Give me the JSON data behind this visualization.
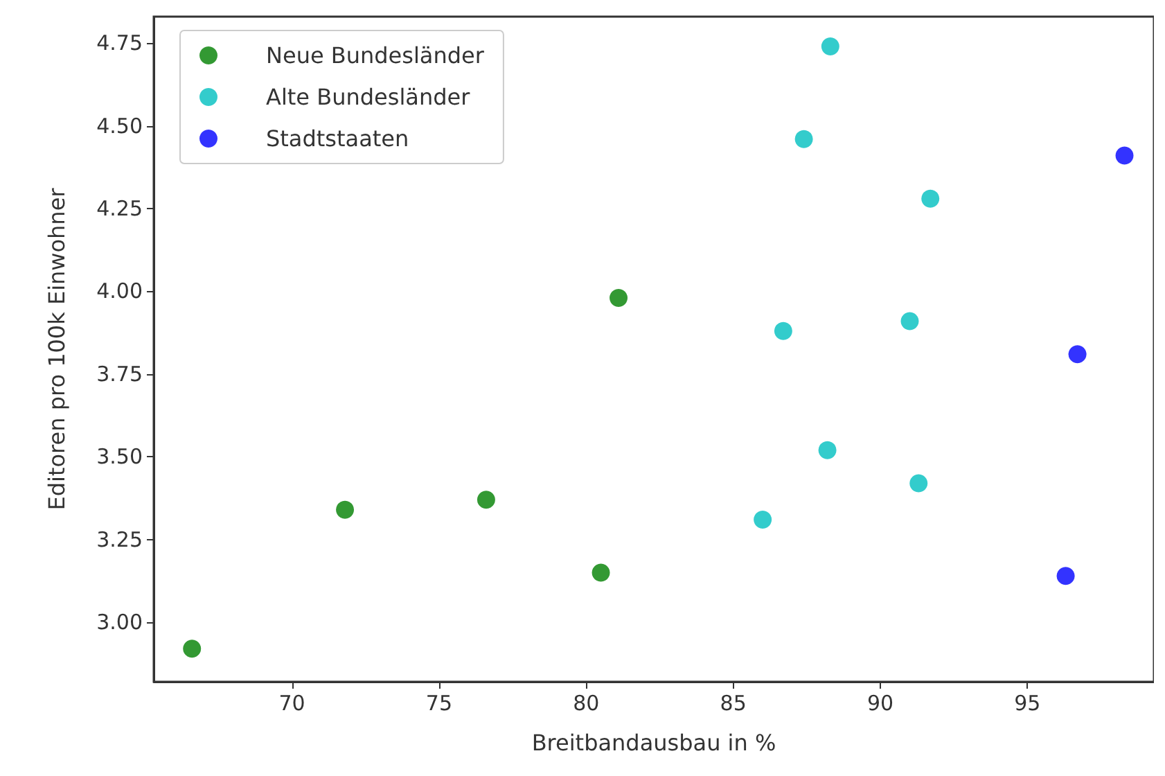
{
  "chart_data": {
    "type": "scatter",
    "xlabel": "Breitbandausbau in %",
    "ylabel": "Editoren pro 100k Einwohner",
    "xlim": [
      65.3,
      99.3
    ],
    "xticks": [
      70,
      75,
      80,
      85,
      90,
      95
    ],
    "ylim": [
      2.82,
      4.83
    ],
    "yticks": [
      {
        "value": 3,
        "label": "3.00"
      },
      {
        "value": 3.25,
        "label": "3.25"
      },
      {
        "value": 3.5,
        "label": "3.50"
      },
      {
        "value": 3.75,
        "label": "3.75"
      },
      {
        "value": 4,
        "label": "4.00"
      },
      {
        "value": 4.25,
        "label": "4.25"
      },
      {
        "value": 4.5,
        "label": "4.50"
      },
      {
        "value": 4.75,
        "label": "4.75"
      }
    ],
    "grid": false,
    "legend": "top left",
    "marker": "circle",
    "series": [
      {
        "name": "Neue Bundesländer",
        "color": "#008000",
        "x": [
          66.6,
          71.8,
          76.6,
          80.5,
          81.1
        ],
        "values": [
          2.92,
          3.34,
          3.37,
          3.15,
          3.98
        ]
      },
      {
        "name": "Alte Bundesländer",
        "color": "#00bfbf",
        "x": [
          88.3,
          87.4,
          91.7,
          86.7,
          91.0,
          88.2,
          91.3,
          86.0
        ],
        "values": [
          4.74,
          4.46,
          4.28,
          3.88,
          3.91,
          3.52,
          3.42,
          3.31
        ]
      },
      {
        "name": "Stadtstaaten",
        "color": "#0000ff",
        "x": [
          98.3,
          96.7,
          96.3
        ],
        "values": [
          4.41,
          3.81,
          3.14
        ]
      }
    ]
  }
}
